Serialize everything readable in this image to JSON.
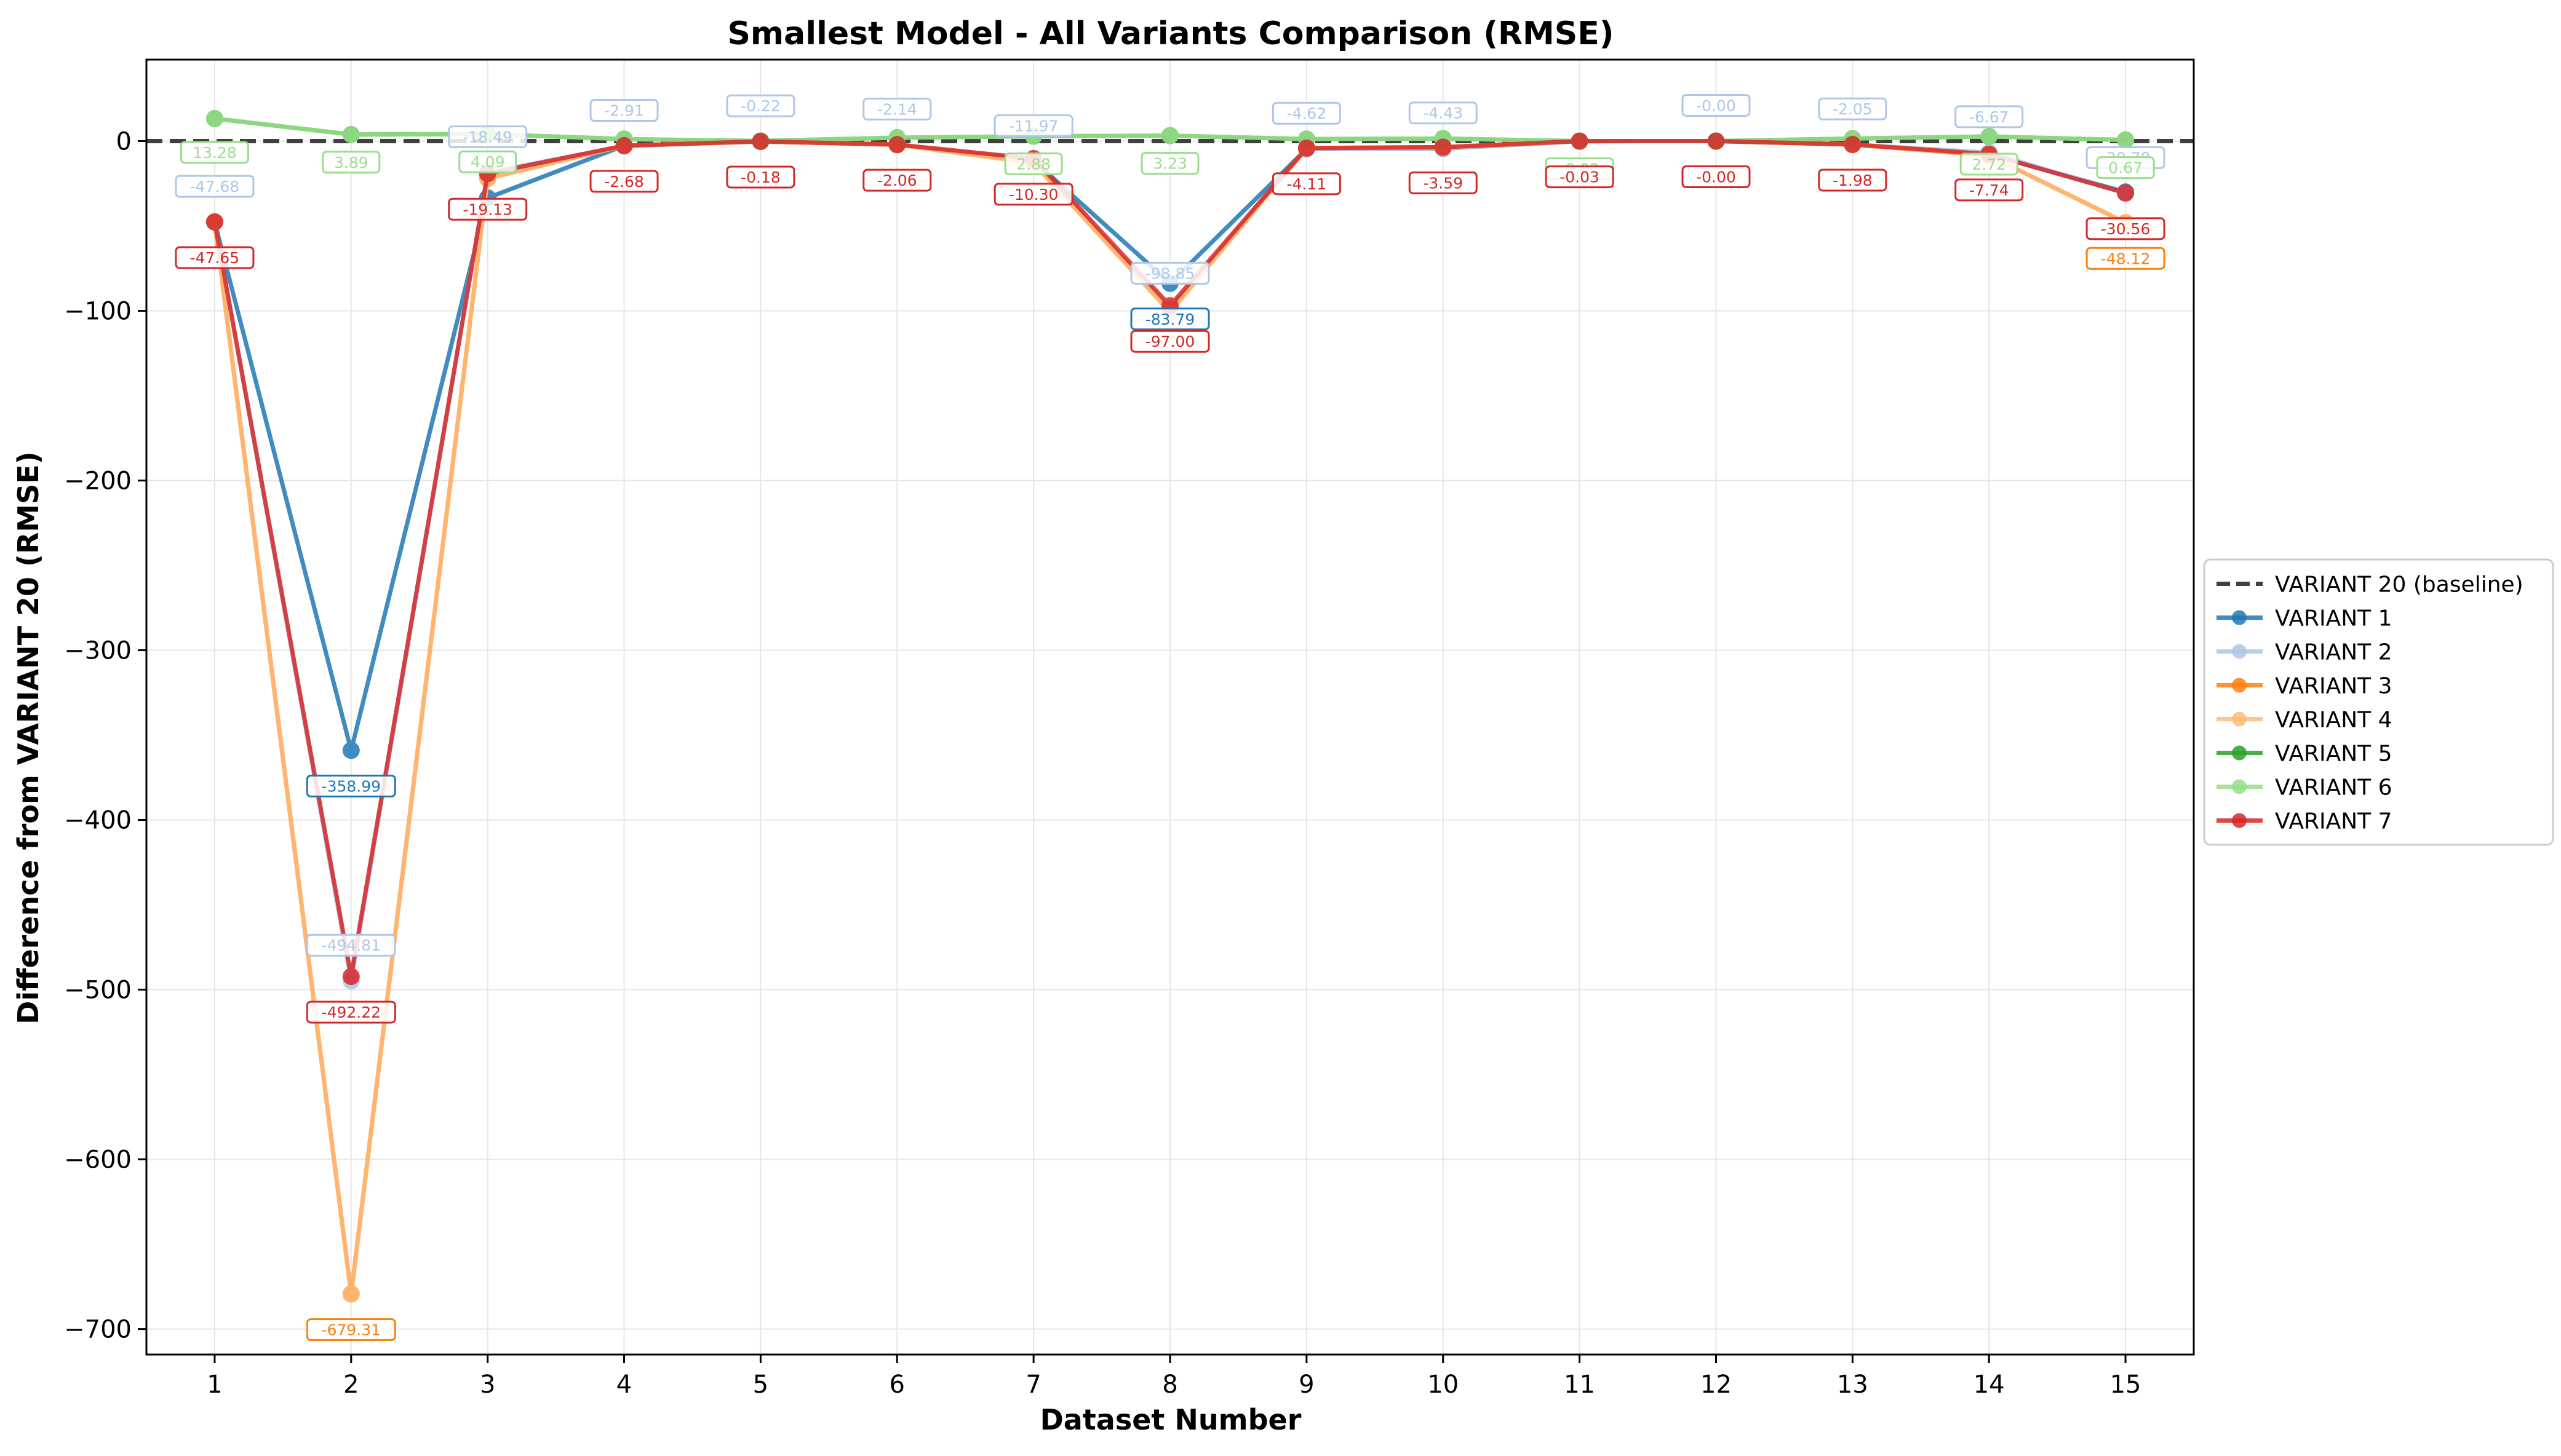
{
  "chart_data": {
    "type": "line",
    "title": "Smallest Model - All Variants Comparison (RMSE)",
    "xlabel": "Dataset Number",
    "ylabel": "Difference from VARIANT 20 (RMSE)",
    "x": [
      1,
      2,
      3,
      4,
      5,
      6,
      7,
      8,
      9,
      10,
      11,
      12,
      13,
      14,
      15
    ],
    "xlim": [
      0.5,
      15.5
    ],
    "ylim": [
      -715,
      48
    ],
    "yticks": [
      0,
      -100,
      -200,
      -300,
      -400,
      -500,
      -600,
      -700
    ],
    "grid": true,
    "legend_position": "center-right",
    "baseline": {
      "name": "VARIANT 20 (baseline)",
      "value": 0,
      "color": "#404040",
      "dashed": true
    },
    "series": [
      {
        "name": "VARIANT 1",
        "color": "#1f77b4",
        "linewidth": 7,
        "alpha": 0.85,
        "values": [
          -47.6,
          -358.99,
          -33.5,
          -2.7,
          -0.2,
          -2.1,
          -11.5,
          -83.79,
          -4.6,
          -4.4,
          -0.03,
          -0.0,
          -2.0,
          -7.7,
          -30.0
        ],
        "labels": [
          null,
          "-358.99",
          null,
          null,
          null,
          null,
          null,
          "-83.79",
          null,
          null,
          null,
          null,
          null,
          null,
          null
        ]
      },
      {
        "name": "VARIANT 2",
        "color": "#aec7e8",
        "linewidth": 7,
        "alpha": 0.85,
        "values": [
          -47.68,
          -494.81,
          -18.49,
          -2.91,
          -0.22,
          -2.14,
          -11.97,
          -98.85,
          -4.62,
          -4.43,
          -0.03,
          -0.0,
          -2.05,
          -6.67,
          -30.78
        ],
        "labels": [
          "-47.68",
          "-494.81",
          "-18.49",
          "-2.91",
          "-0.22",
          "-2.14",
          "-11.97",
          "-98.85",
          "-4.62",
          "-4.43",
          null,
          "-0.00",
          "-2.05",
          "-6.67",
          "-30.78"
        ]
      },
      {
        "name": "VARIANT 3",
        "color": "#ff7f0e",
        "linewidth": 7,
        "alpha": 0.85,
        "values": [
          -47.6,
          -679.31,
          -22.0,
          -2.7,
          -0.2,
          -2.1,
          -12.5,
          -100.0,
          -4.1,
          -3.6,
          -0.03,
          -0.0,
          -2.0,
          -8.5,
          -48.12
        ],
        "labels": [
          null,
          "-679.31",
          null,
          null,
          null,
          null,
          null,
          null,
          null,
          null,
          null,
          null,
          null,
          null,
          "-48.12"
        ]
      },
      {
        "name": "VARIANT 4",
        "color": "#ffbb78",
        "linewidth": 7,
        "alpha": 0.85,
        "values": [
          -47.6,
          -679.3,
          -22.0,
          -2.7,
          -0.2,
          -2.1,
          -13.0,
          -101.0,
          -4.1,
          -3.6,
          -0.03,
          -0.0,
          -2.0,
          -8.5,
          -48.0
        ],
        "labels": [
          null,
          null,
          null,
          null,
          null,
          null,
          null,
          null,
          null,
          null,
          null,
          null,
          null,
          null,
          null
        ]
      },
      {
        "name": "VARIANT 5",
        "color": "#2ca02c",
        "linewidth": 7,
        "alpha": 0.85,
        "values": [
          13.28,
          3.89,
          4.09,
          1.2,
          0.1,
          2.0,
          2.88,
          3.23,
          1.2,
          1.5,
          -0.02,
          0.0,
          1.5,
          2.72,
          0.67
        ],
        "labels": [
          null,
          null,
          null,
          null,
          null,
          null,
          null,
          null,
          null,
          null,
          null,
          null,
          null,
          null,
          null
        ]
      },
      {
        "name": "VARIANT 6",
        "color": "#98df8a",
        "linewidth": 7,
        "alpha": 0.85,
        "values": [
          13.28,
          3.89,
          4.09,
          1.2,
          0.1,
          2.0,
          2.88,
          3.23,
          1.2,
          1.5,
          -0.02,
          0.0,
          1.5,
          2.72,
          0.67
        ],
        "labels": [
          "13.28",
          "3.89",
          "4.09",
          null,
          null,
          null,
          "2.88",
          "3.23",
          null,
          null,
          "-0.02",
          null,
          null,
          "2.72",
          "0.67"
        ]
      },
      {
        "name": "VARIANT 7",
        "color": "#d62728",
        "linewidth": 7,
        "alpha": 0.85,
        "values": [
          -47.65,
          -492.22,
          -19.13,
          -2.68,
          -0.18,
          -2.06,
          -10.3,
          -97.0,
          -4.11,
          -3.59,
          -0.03,
          -0.0,
          -1.98,
          -7.74,
          -30.56
        ],
        "labels": [
          "-47.65",
          "-492.22",
          "-19.13",
          "-2.68",
          "-0.18",
          "-2.06",
          "-10.30",
          "-97.00",
          "-4.11",
          "-3.59",
          "-0.03",
          "-0.00",
          "-1.98",
          "-7.74",
          "-30.56"
        ]
      }
    ]
  }
}
